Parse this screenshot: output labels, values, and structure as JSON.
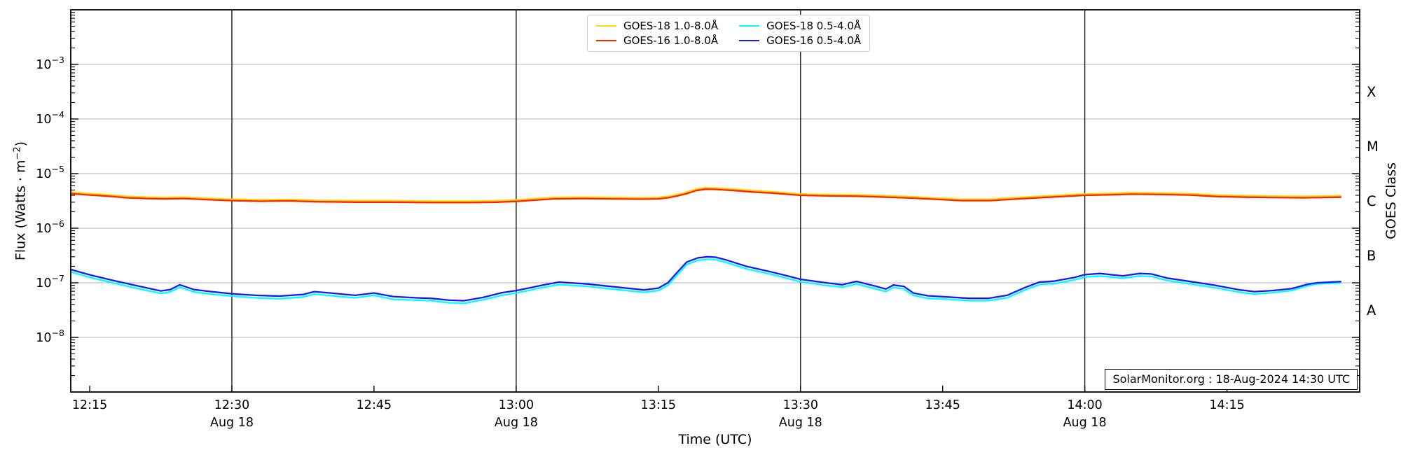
{
  "chart_data": {
    "type": "line",
    "title": "",
    "xlabel": "Time (UTC)",
    "ylabel_parts": {
      "pre": "Flux (Watts · m",
      "sup": "−2",
      "post": ")"
    },
    "right_axis_label": "GOES Class",
    "annotation": "SolarMonitor.org : 18-Aug-2024 14:30 UTC",
    "x_start_time": "12:13",
    "x_domain_minutes": [
      0,
      136
    ],
    "y_domain_log10": [
      -9,
      -2
    ],
    "grid": true,
    "legend_position": "upper center",
    "colors": {
      "grid": "#b3b3b3",
      "day_grid": "#1a1a1a",
      "spine": "#000000",
      "goes18_long": "#ffd700",
      "goes16_long": "#ff2400",
      "goes18_short": "#00ffff",
      "goes16_short": "#1818ff"
    },
    "y_tick_exponents": [
      -3,
      -4,
      -5,
      -6,
      -7,
      -8
    ],
    "x_ticks": [
      {
        "m": 2,
        "label": "12:15",
        "sub": ""
      },
      {
        "m": 17,
        "label": "12:30",
        "sub": "Aug 18"
      },
      {
        "m": 32,
        "label": "12:45",
        "sub": ""
      },
      {
        "m": 47,
        "label": "13:00",
        "sub": "Aug 18"
      },
      {
        "m": 62,
        "label": "13:15",
        "sub": ""
      },
      {
        "m": 77,
        "label": "13:30",
        "sub": "Aug 18"
      },
      {
        "m": 92,
        "label": "13:45",
        "sub": ""
      },
      {
        "m": 107,
        "label": "14:00",
        "sub": "Aug 18"
      },
      {
        "m": 122,
        "label": "14:15",
        "sub": ""
      }
    ],
    "x_gridlines_m": [
      17,
      47,
      77,
      107
    ],
    "goes_classes": [
      {
        "label": "X",
        "log10": -3.5
      },
      {
        "label": "M",
        "log10": -4.5
      },
      {
        "label": "C",
        "log10": -5.5
      },
      {
        "label": "B",
        "log10": -6.5
      },
      {
        "label": "A",
        "log10": -7.5
      }
    ],
    "legend": [
      {
        "label": "GOES-18 1.0-8.0Å",
        "color": "#ffd700"
      },
      {
        "label": "GOES-16 1.0-8.0Å",
        "color": "#ff2400"
      },
      {
        "label": "GOES-18 0.5-4.0Å",
        "color": "#00ffff"
      },
      {
        "label": "GOES-16 0.5-4.0Å",
        "color": "#1818ff"
      }
    ],
    "series": [
      {
        "name": "GOES-18 1.0-8.0Å",
        "color": "#ffd700",
        "points": [
          [
            0,
            4.56e-06
          ],
          [
            2,
            4.29e-06
          ],
          [
            4,
            4.08e-06
          ],
          [
            6,
            3.82e-06
          ],
          [
            8,
            3.71e-06
          ],
          [
            10,
            3.66e-06
          ],
          [
            12,
            3.71e-06
          ],
          [
            14,
            3.55e-06
          ],
          [
            17,
            3.39e-06
          ],
          [
            20,
            3.31e-06
          ],
          [
            23,
            3.35e-06
          ],
          [
            26,
            3.23e-06
          ],
          [
            30,
            3.18e-06
          ],
          [
            34,
            3.18e-06
          ],
          [
            38,
            3.13e-06
          ],
          [
            42,
            3.13e-06
          ],
          [
            45,
            3.18e-06
          ],
          [
            47,
            3.29e-06
          ],
          [
            51,
            3.66e-06
          ],
          [
            54,
            3.71e-06
          ],
          [
            57,
            3.66e-06
          ],
          [
            60,
            3.6e-06
          ],
          [
            62,
            3.66e-06
          ],
          [
            63,
            3.82e-06
          ],
          [
            64,
            4.13e-06
          ],
          [
            65,
            4.56e-06
          ],
          [
            66,
            5.19e-06
          ],
          [
            67,
            5.51e-06
          ],
          [
            68,
            5.46e-06
          ],
          [
            70,
            5.19e-06
          ],
          [
            72,
            4.88e-06
          ],
          [
            74,
            4.66e-06
          ],
          [
            77,
            4.24e-06
          ],
          [
            80,
            4.13e-06
          ],
          [
            83,
            4.08e-06
          ],
          [
            85,
            3.98e-06
          ],
          [
            88,
            3.82e-06
          ],
          [
            91,
            3.6e-06
          ],
          [
            94,
            3.39e-06
          ],
          [
            97,
            3.39e-06
          ],
          [
            100,
            3.66e-06
          ],
          [
            104,
            3.98e-06
          ],
          [
            107,
            4.24e-06
          ],
          [
            110,
            4.35e-06
          ],
          [
            112,
            4.45e-06
          ],
          [
            115,
            4.4e-06
          ],
          [
            118,
            4.29e-06
          ],
          [
            121,
            4.03e-06
          ],
          [
            124,
            3.92e-06
          ],
          [
            127,
            3.87e-06
          ],
          [
            130,
            3.82e-06
          ],
          [
            132,
            3.87e-06
          ],
          [
            134,
            3.92e-06
          ]
        ]
      },
      {
        "name": "GOES-16 1.0-8.0Å",
        "color": "#ff2400",
        "points": [
          [
            0,
            4.3e-06
          ],
          [
            2,
            4.05e-06
          ],
          [
            4,
            3.85e-06
          ],
          [
            6,
            3.6e-06
          ],
          [
            8,
            3.5e-06
          ],
          [
            10,
            3.45e-06
          ],
          [
            12,
            3.5e-06
          ],
          [
            14,
            3.35e-06
          ],
          [
            17,
            3.2e-06
          ],
          [
            20,
            3.12e-06
          ],
          [
            23,
            3.16e-06
          ],
          [
            26,
            3.05e-06
          ],
          [
            30,
            3e-06
          ],
          [
            34,
            3e-06
          ],
          [
            38,
            2.95e-06
          ],
          [
            42,
            2.95e-06
          ],
          [
            45,
            3e-06
          ],
          [
            47,
            3.1e-06
          ],
          [
            51,
            3.45e-06
          ],
          [
            54,
            3.5e-06
          ],
          [
            57,
            3.45e-06
          ],
          [
            60,
            3.4e-06
          ],
          [
            62,
            3.45e-06
          ],
          [
            63,
            3.6e-06
          ],
          [
            64,
            3.9e-06
          ],
          [
            65,
            4.3e-06
          ],
          [
            66,
            4.9e-06
          ],
          [
            67,
            5.2e-06
          ],
          [
            68,
            5.15e-06
          ],
          [
            70,
            4.9e-06
          ],
          [
            72,
            4.6e-06
          ],
          [
            74,
            4.4e-06
          ],
          [
            77,
            4e-06
          ],
          [
            80,
            3.9e-06
          ],
          [
            83,
            3.85e-06
          ],
          [
            85,
            3.75e-06
          ],
          [
            88,
            3.6e-06
          ],
          [
            91,
            3.4e-06
          ],
          [
            94,
            3.2e-06
          ],
          [
            97,
            3.2e-06
          ],
          [
            100,
            3.45e-06
          ],
          [
            104,
            3.75e-06
          ],
          [
            107,
            4e-06
          ],
          [
            110,
            4.1e-06
          ],
          [
            112,
            4.2e-06
          ],
          [
            115,
            4.15e-06
          ],
          [
            118,
            4.05e-06
          ],
          [
            121,
            3.8e-06
          ],
          [
            124,
            3.7e-06
          ],
          [
            127,
            3.65e-06
          ],
          [
            130,
            3.6e-06
          ],
          [
            132,
            3.65e-06
          ],
          [
            134,
            3.7e-06
          ]
        ]
      },
      {
        "name": "GOES-18 0.5-4.0Å",
        "color": "#00ffff",
        "points": [
          [
            0,
            1.58e-07
          ],
          [
            2,
            1.26e-07
          ],
          [
            4.5,
            9.9e-08
          ],
          [
            7,
            7.9e-08
          ],
          [
            9.5,
            6.4e-08
          ],
          [
            10.5,
            6.8e-08
          ],
          [
            11.5,
            8.3e-08
          ],
          [
            13,
            6.8e-08
          ],
          [
            14.5,
            6.3e-08
          ],
          [
            17,
            5.7e-08
          ],
          [
            19.5,
            5.3e-08
          ],
          [
            22,
            5.1e-08
          ],
          [
            24.5,
            5.5e-08
          ],
          [
            25.7,
            6.2e-08
          ],
          [
            27,
            5.9e-08
          ],
          [
            30,
            5.3e-08
          ],
          [
            32,
            5.9e-08
          ],
          [
            34,
            5e-08
          ],
          [
            36.5,
            4.8e-08
          ],
          [
            38,
            4.7e-08
          ],
          [
            40,
            4.3e-08
          ],
          [
            41.5,
            4.2e-08
          ],
          [
            43.5,
            4.9e-08
          ],
          [
            45.5,
            5.9e-08
          ],
          [
            47,
            6.5e-08
          ],
          [
            50,
            8.3e-08
          ],
          [
            51.5,
            9.3e-08
          ],
          [
            54.5,
            8.6e-08
          ],
          [
            58,
            7.4e-08
          ],
          [
            60.5,
            6.7e-08
          ],
          [
            62,
            7.2e-08
          ],
          [
            63,
            9e-08
          ],
          [
            64,
            1.4e-07
          ],
          [
            65,
            2.16e-07
          ],
          [
            66.2,
            2.58e-07
          ],
          [
            67.2,
            2.7e-07
          ],
          [
            68,
            2.66e-07
          ],
          [
            69,
            2.4e-07
          ],
          [
            71.3,
            1.8e-07
          ],
          [
            73.8,
            1.44e-07
          ],
          [
            75.5,
            1.22e-07
          ],
          [
            77,
            1.04e-07
          ],
          [
            79.7,
            9e-08
          ],
          [
            81.4,
            8.3e-08
          ],
          [
            82.9,
            9.5e-08
          ],
          [
            85,
            7.7e-08
          ],
          [
            86,
            6.9e-08
          ],
          [
            86.8,
            8.2e-08
          ],
          [
            87.9,
            7.7e-08
          ],
          [
            88.9,
            5.9e-08
          ],
          [
            90.4,
            5.2e-08
          ],
          [
            92.6,
            5e-08
          ],
          [
            94.8,
            4.7e-08
          ],
          [
            96.8,
            4.7e-08
          ],
          [
            98.8,
            5.3e-08
          ],
          [
            100.7,
            7.4e-08
          ],
          [
            102.2,
            9.3e-08
          ],
          [
            103.7,
            9.6e-08
          ],
          [
            105.9,
            1.13e-07
          ],
          [
            107,
            1.27e-07
          ],
          [
            108.6,
            1.33e-07
          ],
          [
            111,
            1.21e-07
          ],
          [
            112.8,
            1.33e-07
          ],
          [
            114,
            1.31e-07
          ],
          [
            115.7,
            1.1e-07
          ],
          [
            118.2,
            9.5e-08
          ],
          [
            120.6,
            8.2e-08
          ],
          [
            123.4,
            6.7e-08
          ],
          [
            124.9,
            6.2e-08
          ],
          [
            126.8,
            6.6e-08
          ],
          [
            128.8,
            7.2e-08
          ],
          [
            130.5,
            8.8e-08
          ],
          [
            131.5,
            9.5e-08
          ],
          [
            134,
            1e-07
          ]
        ]
      },
      {
        "name": "GOES-16 0.5-4.0Å",
        "color": "#1818ff",
        "points": [
          [
            0,
            1.75e-07
          ],
          [
            2,
            1.4e-07
          ],
          [
            4.5,
            1.1e-07
          ],
          [
            7,
            8.8e-08
          ],
          [
            9.5,
            7.1e-08
          ],
          [
            10.5,
            7.5e-08
          ],
          [
            11.5,
            9.2e-08
          ],
          [
            13,
            7.5e-08
          ],
          [
            14.5,
            7e-08
          ],
          [
            17,
            6.3e-08
          ],
          [
            19.5,
            5.9e-08
          ],
          [
            22,
            5.7e-08
          ],
          [
            24.5,
            6.1e-08
          ],
          [
            25.7,
            6.9e-08
          ],
          [
            27,
            6.6e-08
          ],
          [
            30,
            5.9e-08
          ],
          [
            32,
            6.5e-08
          ],
          [
            34,
            5.6e-08
          ],
          [
            36.5,
            5.3e-08
          ],
          [
            38,
            5.2e-08
          ],
          [
            40,
            4.8e-08
          ],
          [
            41.5,
            4.7e-08
          ],
          [
            43.5,
            5.4e-08
          ],
          [
            45.5,
            6.6e-08
          ],
          [
            47,
            7.2e-08
          ],
          [
            50,
            9.2e-08
          ],
          [
            51.5,
            1.03e-07
          ],
          [
            54.5,
            9.5e-08
          ],
          [
            58,
            8.2e-08
          ],
          [
            60.5,
            7.4e-08
          ],
          [
            62,
            8e-08
          ],
          [
            63,
            1e-07
          ],
          [
            64,
            1.56e-07
          ],
          [
            65,
            2.4e-07
          ],
          [
            66.2,
            2.87e-07
          ],
          [
            67.2,
            3e-07
          ],
          [
            68,
            2.95e-07
          ],
          [
            69,
            2.67e-07
          ],
          [
            71.3,
            2e-07
          ],
          [
            73.8,
            1.6e-07
          ],
          [
            75.5,
            1.35e-07
          ],
          [
            77,
            1.16e-07
          ],
          [
            79.7,
            1e-07
          ],
          [
            81.4,
            9.2e-08
          ],
          [
            82.9,
            1.06e-07
          ],
          [
            85,
            8.6e-08
          ],
          [
            86,
            7.7e-08
          ],
          [
            86.8,
            9.1e-08
          ],
          [
            87.9,
            8.6e-08
          ],
          [
            88.9,
            6.5e-08
          ],
          [
            90.4,
            5.8e-08
          ],
          [
            92.6,
            5.5e-08
          ],
          [
            94.8,
            5.2e-08
          ],
          [
            96.8,
            5.2e-08
          ],
          [
            98.8,
            5.9e-08
          ],
          [
            100.7,
            8.2e-08
          ],
          [
            102.2,
            1.03e-07
          ],
          [
            103.7,
            1.07e-07
          ],
          [
            105.9,
            1.25e-07
          ],
          [
            107,
            1.41e-07
          ],
          [
            108.6,
            1.48e-07
          ],
          [
            111,
            1.34e-07
          ],
          [
            112.8,
            1.48e-07
          ],
          [
            114,
            1.45e-07
          ],
          [
            115.7,
            1.22e-07
          ],
          [
            118.2,
            1.05e-07
          ],
          [
            120.6,
            9.1e-08
          ],
          [
            123.4,
            7.4e-08
          ],
          [
            124.9,
            6.9e-08
          ],
          [
            126.8,
            7.2e-08
          ],
          [
            128.8,
            7.8e-08
          ],
          [
            130.5,
            9.4e-08
          ],
          [
            131.5,
            1e-07
          ],
          [
            134,
            1.05e-07
          ]
        ]
      }
    ]
  }
}
